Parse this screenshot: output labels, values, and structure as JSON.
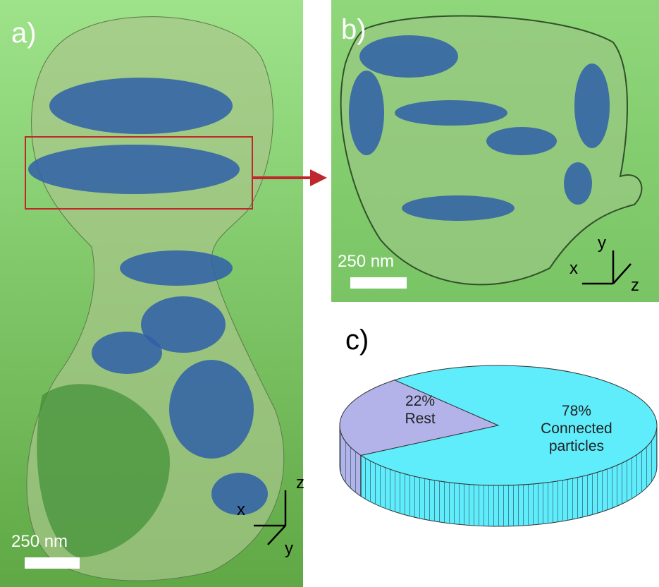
{
  "panels": [
    {
      "label": "a)",
      "scale_bar": "250 nm",
      "axes": [
        "x",
        "y",
        "z"
      ]
    },
    {
      "label": "b)",
      "scale_bar": "250 nm",
      "axes": [
        "x",
        "y",
        "z"
      ]
    },
    {
      "label": "c)"
    }
  ],
  "chart_data": {
    "type": "pie",
    "categories": [
      "Rest",
      "Connected particles"
    ],
    "values": [
      22,
      78
    ],
    "value_labels": [
      "22%",
      "78%"
    ],
    "colors": [
      "#b3b3ea",
      "#5fecfb"
    ]
  }
}
